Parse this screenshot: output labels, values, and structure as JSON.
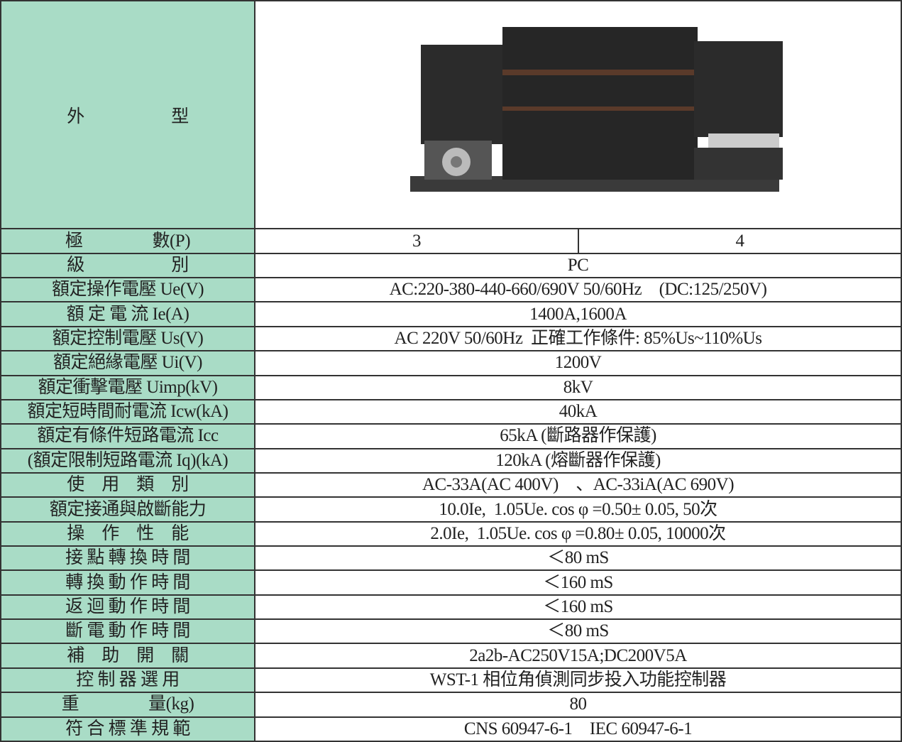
{
  "header": {
    "label": "外　　　　　型"
  },
  "rows": [
    {
      "label": "極　　　　數(P)",
      "values": [
        "3",
        "4"
      ]
    },
    {
      "label": "級　　　　　別",
      "values": [
        "PC"
      ]
    },
    {
      "label": "額定操作電壓 Ue(V)",
      "values": [
        "AC:220-380-440-660/690V 50/60Hz　(DC:125/250V)"
      ]
    },
    {
      "label": "額 定 電 流 Ie(A)",
      "values": [
        "1400A,1600A"
      ]
    },
    {
      "label": "額定控制電壓 Us(V)",
      "values": [
        "AC 220V 50/60Hz  正確工作條件: 85%Us~110%Us"
      ]
    },
    {
      "label": "額定絕緣電壓 Ui(V)",
      "values": [
        "1200V"
      ]
    },
    {
      "label": "額定衝擊電壓 Uimp(kV)",
      "values": [
        "8kV"
      ]
    },
    {
      "label": "額定短時間耐電流 Icw(kA)",
      "values": [
        "40kA"
      ]
    },
    {
      "label": "額定有條件短路電流 Icc",
      "values": [
        "65kA (斷路器作保護)"
      ]
    },
    {
      "label": "(額定限制短路電流 Iq)(kA)",
      "values": [
        "120kA (熔斷器作保護)"
      ]
    },
    {
      "label": "使　用　類　別",
      "values": [
        "AC-33A(AC 400V)　、AC-33iA(AC 690V)"
      ]
    },
    {
      "label": "額定接通與啟斷能力",
      "values": [
        "10.0Ie,  1.05Ue. cos φ =0.50± 0.05, 50次"
      ]
    },
    {
      "label": "操　作　性　能",
      "values": [
        "2.0Ie,  1.05Ue. cos φ =0.80± 0.05, 10000次"
      ]
    },
    {
      "label": "接 點 轉 換 時 間",
      "values": [
        "＜80 mS"
      ]
    },
    {
      "label": "轉 換 動 作 時 間",
      "values": [
        "＜160 mS"
      ]
    },
    {
      "label": "返 迴 動 作 時 間",
      "values": [
        "＜160 mS"
      ]
    },
    {
      "label": "斷 電 動 作 時 間",
      "values": [
        "＜80 mS"
      ]
    },
    {
      "label": "補　助　開　關",
      "values": [
        "2a2b-AC250V15A;DC200V5A"
      ]
    },
    {
      "label": "控 制 器 選 用",
      "values": [
        "WST-1 相位角偵測同步投入功能控制器"
      ]
    },
    {
      "label": "重　　　　量(kg)",
      "values": [
        "80"
      ]
    },
    {
      "label": "符 合 標 準 規 範",
      "values": [
        "CNS 60947-6-1　IEC 60947-6-1"
      ]
    }
  ]
}
